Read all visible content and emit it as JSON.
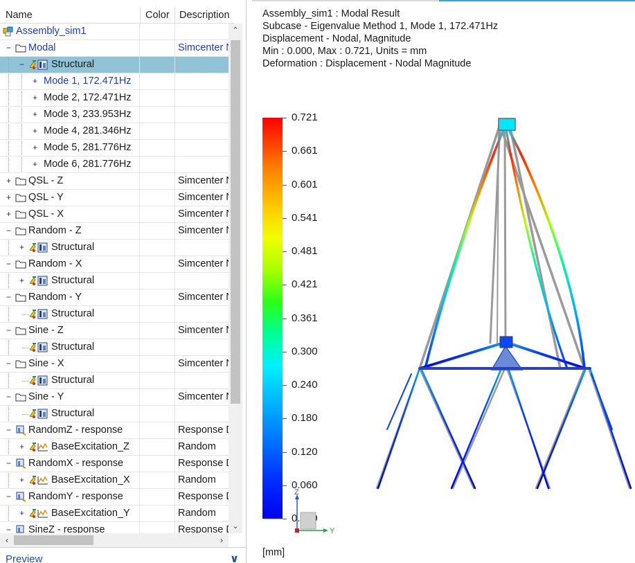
{
  "tree": {
    "columns": {
      "name": "Name",
      "color": "Color",
      "description": "Description"
    },
    "rows": [
      {
        "label": "Assembly_sim1",
        "desc": "",
        "level": 0,
        "toggle": "",
        "icon": "assembly",
        "link": true
      },
      {
        "label": "Modal",
        "desc": "Simcenter N",
        "level": 0,
        "toggle": "−",
        "icon": "folder",
        "link": true,
        "desc_link": true
      },
      {
        "label": "Structural",
        "desc": "",
        "level": 1,
        "toggle": "−",
        "icon": "solution",
        "selected": true
      },
      {
        "label": "Mode 1, 172.471Hz",
        "desc": "",
        "level": 2,
        "toggle": "+",
        "icon": "",
        "link": true
      },
      {
        "label": "Mode 2, 172.471Hz",
        "desc": "",
        "level": 2,
        "toggle": "+",
        "icon": ""
      },
      {
        "label": "Mode 3, 233.953Hz",
        "desc": "",
        "level": 2,
        "toggle": "+",
        "icon": ""
      },
      {
        "label": "Mode 4, 281.346Hz",
        "desc": "",
        "level": 2,
        "toggle": "+",
        "icon": ""
      },
      {
        "label": "Mode 5, 281.776Hz",
        "desc": "",
        "level": 2,
        "toggle": "+",
        "icon": ""
      },
      {
        "label": "Mode 6, 281.776Hz",
        "desc": "",
        "level": 2,
        "toggle": "+",
        "icon": ""
      },
      {
        "label": "QSL - Z",
        "desc": "Simcenter N",
        "level": 0,
        "toggle": "+",
        "icon": "folder"
      },
      {
        "label": "QSL - Y",
        "desc": "Simcenter N",
        "level": 0,
        "toggle": "+",
        "icon": "folder"
      },
      {
        "label": "QSL - X",
        "desc": "Simcenter N",
        "level": 0,
        "toggle": "+",
        "icon": "folder"
      },
      {
        "label": "Random - Z",
        "desc": "Simcenter N",
        "level": 0,
        "toggle": "−",
        "icon": "folder"
      },
      {
        "label": "Structural",
        "desc": "",
        "level": 1,
        "toggle": "+",
        "icon": "solution"
      },
      {
        "label": "Random - X",
        "desc": "Simcenter N",
        "level": 0,
        "toggle": "−",
        "icon": "folder"
      },
      {
        "label": "Structural",
        "desc": "",
        "level": 1,
        "toggle": "+",
        "icon": "solution"
      },
      {
        "label": "Random - Y",
        "desc": "Simcenter N",
        "level": 0,
        "toggle": "−",
        "icon": "folder"
      },
      {
        "label": "Structural",
        "desc": "",
        "level": 1,
        "toggle": "",
        "icon": "solution"
      },
      {
        "label": "Sine - Z",
        "desc": "Simcenter N",
        "level": 0,
        "toggle": "−",
        "icon": "folder"
      },
      {
        "label": "Structural",
        "desc": "",
        "level": 1,
        "toggle": "",
        "icon": "solution"
      },
      {
        "label": "Sine - X",
        "desc": "Simcenter N",
        "level": 0,
        "toggle": "−",
        "icon": "folder"
      },
      {
        "label": "Structural",
        "desc": "",
        "level": 1,
        "toggle": "",
        "icon": "solution"
      },
      {
        "label": "Sine - Y",
        "desc": "Simcenter N",
        "level": 0,
        "toggle": "−",
        "icon": "folder"
      },
      {
        "label": "Structural",
        "desc": "",
        "level": 1,
        "toggle": "",
        "icon": "solution"
      },
      {
        "label": "RandomZ - response",
        "desc": "Response D",
        "level": 0,
        "toggle": "−",
        "icon": "response"
      },
      {
        "label": "BaseExcitation_Z",
        "desc": "Random",
        "level": 1,
        "toggle": "+",
        "icon": "excitation"
      },
      {
        "label": "RandomX - response",
        "desc": "Response D",
        "level": 0,
        "toggle": "−",
        "icon": "response"
      },
      {
        "label": "BaseExcitation_X",
        "desc": "Random",
        "level": 1,
        "toggle": "+",
        "icon": "excitation"
      },
      {
        "label": "RandomY - response",
        "desc": "Response D",
        "level": 0,
        "toggle": "−",
        "icon": "response"
      },
      {
        "label": "BaseExcitation_Y",
        "desc": "Random",
        "level": 1,
        "toggle": "+",
        "icon": "excitation"
      },
      {
        "label": "SineZ - response",
        "desc": "Response D",
        "level": 0,
        "toggle": "−",
        "icon": "response"
      }
    ]
  },
  "preview": {
    "label": "Preview",
    "toggle": "∨"
  },
  "result": {
    "lines": [
      "Assembly_sim1 : Modal Result",
      "Subcase - Eigenvalue Method 1, Mode 1, 172.471Hz",
      "Displacement - Nodal, Magnitude",
      "Min : 0.000, Max : 0.721, Units = mm",
      "Deformation : Displacement - Nodal Magnitude"
    ],
    "legend_ticks": [
      "0.721",
      "0.661",
      "0.601",
      "0.541",
      "0.481",
      "0.421",
      "0.361",
      "0.300",
      "0.240",
      "0.180",
      "0.120",
      "0.060",
      "0.000"
    ],
    "unit": "[mm]",
    "triad": {
      "z": "Z",
      "y": "Y"
    }
  },
  "colors": {
    "selection": "#91c3d6",
    "link": "#1f3cbf",
    "accent": "#3aa0d6"
  }
}
